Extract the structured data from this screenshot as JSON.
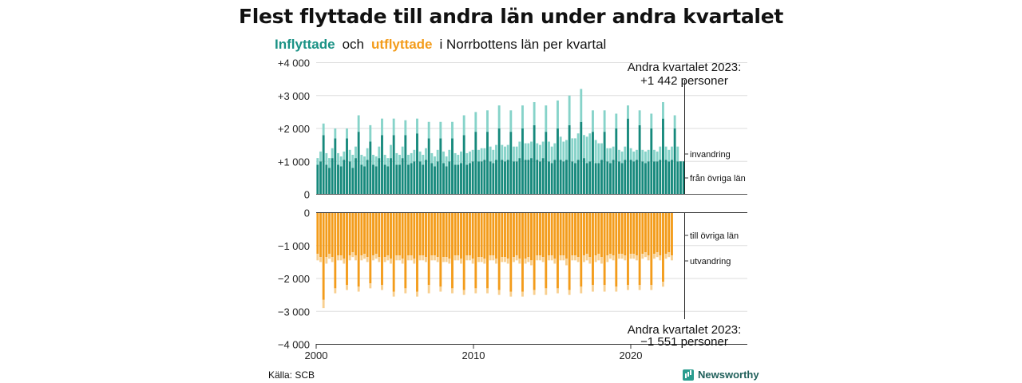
{
  "title": "Flest flyttade till andra län under andra kvartalet",
  "subtitle": {
    "part1": "Inflyttade",
    "part2": "och",
    "part3": "utflyttade",
    "part4": "i Norrbottens län per kvartal"
  },
  "colors": {
    "inflow_dark": "#16897c",
    "inflow_light": "#86d3c9",
    "outflow_dark": "#f39c1b",
    "outflow_light": "#f8cf8f",
    "grid": "#dddddd"
  },
  "chart_data": {
    "type": "bar",
    "x_start": 2000,
    "x_end": 2023,
    "xticks": [
      2000,
      2010,
      2020
    ],
    "xtick_labels": [
      "2000",
      "2010",
      "2020"
    ],
    "ylim": [
      -4000,
      4000
    ],
    "yticks_top": [
      0,
      1000,
      2000,
      3000,
      4000
    ],
    "yticks_top_labels": [
      "0",
      "+1 000",
      "+2 000",
      "+3 000",
      "+4 000"
    ],
    "yticks_bottom": [
      0,
      -1000,
      -2000,
      -3000,
      -4000
    ],
    "yticks_bottom_labels": [
      "0",
      "−1 000",
      "−2 000",
      "−3 000",
      "−4 000"
    ],
    "series": [
      {
        "name": "från övriga län",
        "values": [
          900,
          1000,
          1800,
          900,
          800,
          1100,
          1700,
          900,
          850,
          1050,
          1700,
          1000,
          800,
          1100,
          1900,
          900,
          850,
          1050,
          1600,
          900,
          850,
          1100,
          1800,
          900,
          850,
          1100,
          1800,
          900,
          900,
          1100,
          1800,
          900,
          950,
          1000,
          1850,
          1000,
          900,
          1050,
          1700,
          950,
          850,
          1000,
          1700,
          950,
          850,
          1000,
          1700,
          900,
          900,
          950,
          1800,
          900,
          950,
          1000,
          1900,
          1000,
          1000,
          1050,
          1900,
          1000,
          950,
          1050,
          2000,
          1050,
          1000,
          1050,
          1900,
          1000,
          1000,
          1100,
          2000,
          1050,
          1050,
          1100,
          2100,
          1050,
          1000,
          1100,
          1900,
          1000,
          950,
          1050,
          2000,
          1050,
          1000,
          1050,
          2100,
          1000,
          950,
          1050,
          2200,
          1100,
          950,
          1000,
          1900,
          950,
          950,
          1050,
          1900,
          1000,
          950,
          1050,
          2000,
          1000,
          950,
          1050,
          2300,
          1050,
          1000,
          1050,
          2100,
          1000,
          950,
          1000,
          2000,
          1000,
          1000,
          1050,
          2300,
          1050,
          1000,
          1050,
          2000,
          1000,
          1000,
          1000
        ]
      },
      {
        "name": "invandring",
        "values": [
          200,
          300,
          350,
          350,
          300,
          300,
          300,
          350,
          300,
          250,
          300,
          350,
          400,
          350,
          500,
          300,
          300,
          350,
          500,
          300,
          300,
          350,
          500,
          300,
          250,
          400,
          500,
          350,
          300,
          350,
          450,
          300,
          300,
          350,
          450,
          300,
          300,
          350,
          500,
          300,
          300,
          350,
          500,
          350,
          300,
          350,
          500,
          350,
          300,
          350,
          600,
          350,
          350,
          350,
          600,
          350,
          400,
          350,
          650,
          450,
          400,
          450,
          700,
          450,
          450,
          450,
          650,
          450,
          450,
          500,
          700,
          500,
          500,
          500,
          700,
          500,
          500,
          500,
          800,
          600,
          500,
          500,
          850,
          700,
          600,
          600,
          900,
          700,
          750,
          800,
          1000,
          700,
          800,
          850,
          650,
          700,
          600,
          500,
          650,
          400,
          450,
          400,
          450,
          350,
          350,
          400,
          400,
          350,
          300,
          300,
          450,
          350,
          350,
          350,
          450,
          350,
          300,
          400,
          500,
          400,
          350,
          400,
          400,
          450
        ]
      },
      {
        "name": "till övriga län",
        "values": [
          -1250,
          -1350,
          -2650,
          -1350,
          -1250,
          -1350,
          -2300,
          -1300,
          -1300,
          -1400,
          -2200,
          -1300,
          -1200,
          -1300,
          -2250,
          -1300,
          -1250,
          -1350,
          -2150,
          -1300,
          -1250,
          -1350,
          -2200,
          -1350,
          -1300,
          -1400,
          -2400,
          -1300,
          -1300,
          -1400,
          -2300,
          -1300,
          -1300,
          -1400,
          -2400,
          -1300,
          -1300,
          -1350,
          -2200,
          -1300,
          -1300,
          -1350,
          -2250,
          -1350,
          -1350,
          -1400,
          -2300,
          -1300,
          -1300,
          -1400,
          -2350,
          -1300,
          -1300,
          -1400,
          -2300,
          -1350,
          -1350,
          -1400,
          -2300,
          -1300,
          -1300,
          -1400,
          -2350,
          -1350,
          -1350,
          -1400,
          -2400,
          -1350,
          -1300,
          -1400,
          -2400,
          -1400,
          -1350,
          -1450,
          -2350,
          -1300,
          -1300,
          -1350,
          -2300,
          -1300,
          -1300,
          -1400,
          -2300,
          -1300,
          -1300,
          -1400,
          -2350,
          -1300,
          -1300,
          -1350,
          -2250,
          -1300,
          -1250,
          -1350,
          -2200,
          -1300,
          -1250,
          -1350,
          -2200,
          -1300,
          -1250,
          -1300,
          -2250,
          -1250,
          -1250,
          -1300,
          -2200,
          -1250,
          -1250,
          -1300,
          -2200,
          -1250,
          -1200,
          -1300,
          -2200,
          -1250,
          -1200,
          -1300,
          -2100,
          -1250,
          -1200,
          -1300
        ]
      },
      {
        "name": "utvandring",
        "values": [
          -200,
          -150,
          -250,
          -200,
          -150,
          -150,
          -150,
          -150,
          -150,
          -150,
          -150,
          -150,
          -150,
          -150,
          -150,
          -150,
          -150,
          -150,
          -150,
          -150,
          -150,
          -150,
          -150,
          -150,
          -150,
          -150,
          -150,
          -150,
          -150,
          -150,
          -150,
          -150,
          -150,
          -150,
          -150,
          -150,
          -150,
          -150,
          -250,
          -150,
          -150,
          -150,
          -150,
          -150,
          -150,
          -150,
          -150,
          -150,
          -150,
          -150,
          -150,
          -150,
          -150,
          -150,
          -150,
          -150,
          -150,
          -150,
          -150,
          -150,
          -150,
          -150,
          -150,
          -150,
          -150,
          -150,
          -150,
          -150,
          -150,
          -150,
          -150,
          -150,
          -150,
          -150,
          -150,
          -150,
          -150,
          -150,
          -200,
          -150,
          -150,
          -150,
          -150,
          -150,
          -150,
          -200,
          -150,
          -150,
          -150,
          -150,
          -200,
          -200,
          -200,
          -200,
          -200,
          -200,
          -200,
          -200,
          -200,
          -200,
          -150,
          -150,
          -150,
          -150,
          -150,
          -150,
          -150,
          -150,
          -150,
          -150,
          -150,
          -150,
          -150,
          -150,
          -150,
          -150,
          -150,
          -150,
          -150,
          -150,
          -150,
          -150,
          -150,
          -150
        ]
      }
    ],
    "annotation_top": {
      "line1": "Andra kvartalet 2023:",
      "line2": "+1 442 personer"
    },
    "annotation_bottom": {
      "line1": "Andra kvartalet 2023:",
      "line2": "−1 551 personer"
    },
    "side_labels": {
      "invandring": "invandring",
      "fran": "från övriga län",
      "till": "till övriga län",
      "utvandring": "utvandring"
    }
  },
  "source": "Källa: SCB",
  "brand": "Newsworthy"
}
